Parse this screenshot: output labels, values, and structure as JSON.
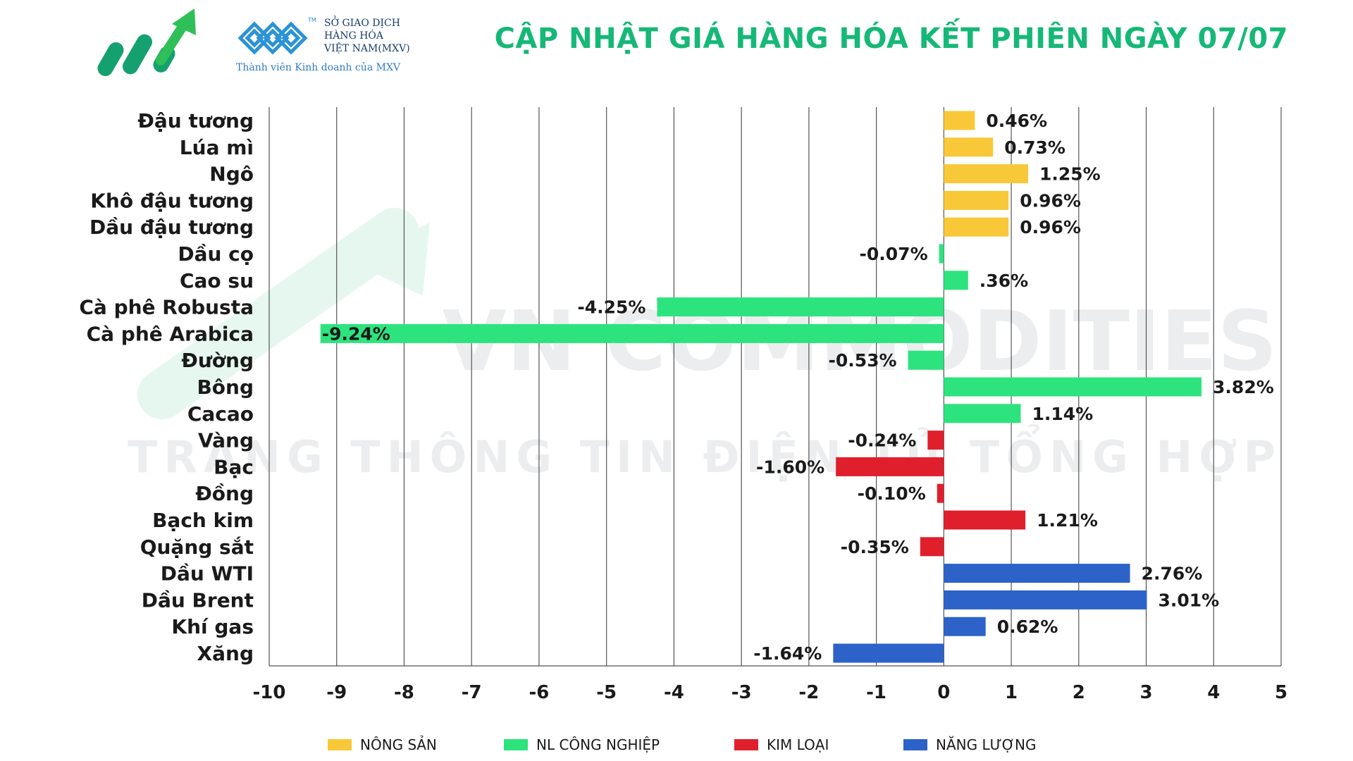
{
  "header": {
    "title": "CẬP NHẬT GIÁ HÀNG HÓA KẾT PHIÊN NGÀY 07/07",
    "exchange_name_line1": "SỞ GIAO DỊCH",
    "exchange_name_line2": "HÀNG HÓA",
    "exchange_name_line3": "VIỆT NAM(MXV)",
    "member_text": "Thành viên Kinh doanh của MXV",
    "trademark": "TM"
  },
  "watermark": {
    "line1": "VN COMMODITIES",
    "line2": "TRANG THÔNG TIN ĐIỆN TỬ TỔNG HỢP"
  },
  "colors": {
    "nong_san": "#f9c838",
    "nl_cong_nghiep": "#2de37e",
    "kim_loai": "#e01f2d",
    "nang_luong": "#2d62c9",
    "title": "#16b877"
  },
  "legend": [
    {
      "label": "NÔNG SẢN",
      "category": "nong_san"
    },
    {
      "label": "NL CÔNG NGHIỆP",
      "category": "nl_cong_nghiep"
    },
    {
      "label": "KIM LOẠI",
      "category": "kim_loai"
    },
    {
      "label": "NĂNG LƯỢNG",
      "category": "nang_luong"
    }
  ],
  "chart_data": {
    "type": "bar",
    "orientation": "horizontal",
    "xlim": [
      -10,
      5
    ],
    "xticks": [
      "-10",
      "-9",
      "-8",
      "-7",
      "-6",
      "-5",
      "-4",
      "-3",
      "-2",
      "-1",
      "0",
      "1",
      "2",
      "3",
      "4",
      "5"
    ],
    "grid": "vertical",
    "legend_position": "bottom",
    "rows": [
      {
        "name": "Đậu tương",
        "value": 0.46,
        "label": "0.46%",
        "category": "nong_san"
      },
      {
        "name": "Lúa mì",
        "value": 0.73,
        "label": "0.73%",
        "category": "nong_san"
      },
      {
        "name": "Ngô",
        "value": 1.25,
        "label": "1.25%",
        "category": "nong_san"
      },
      {
        "name": "Khô đậu tương",
        "value": 0.96,
        "label": "0.96%",
        "category": "nong_san"
      },
      {
        "name": "Dầu đậu tương",
        "value": 0.96,
        "label": "0.96%",
        "category": "nong_san"
      },
      {
        "name": "Dầu cọ",
        "value": -0.07,
        "label": "-0.07%",
        "category": "nl_cong_nghiep"
      },
      {
        "name": "Cao su",
        "value": 0.36,
        "label": ".36%",
        "category": "nl_cong_nghiep"
      },
      {
        "name": "Cà phê Robusta",
        "value": -4.25,
        "label": "-4.25%",
        "category": "nl_cong_nghiep"
      },
      {
        "name": "Cà phê Arabica",
        "value": -9.24,
        "label": "-9.24%",
        "category": "nl_cong_nghiep"
      },
      {
        "name": "Đường",
        "value": -0.53,
        "label": "-0.53%",
        "category": "nl_cong_nghiep"
      },
      {
        "name": "Bông",
        "value": 3.82,
        "label": "3.82%",
        "category": "nl_cong_nghiep"
      },
      {
        "name": "Cacao",
        "value": 1.14,
        "label": "1.14%",
        "category": "nl_cong_nghiep"
      },
      {
        "name": "Vàng",
        "value": -0.24,
        "label": "-0.24%",
        "category": "kim_loai"
      },
      {
        "name": "Bạc",
        "value": -1.6,
        "label": "-1.60%",
        "category": "kim_loai"
      },
      {
        "name": "Đồng",
        "value": -0.1,
        "label": "-0.10%",
        "category": "kim_loai"
      },
      {
        "name": "Bạch kim",
        "value": 1.21,
        "label": "1.21%",
        "category": "kim_loai"
      },
      {
        "name": "Quặng sắt",
        "value": -0.35,
        "label": "-0.35%",
        "category": "kim_loai"
      },
      {
        "name": "Dầu WTI",
        "value": 2.76,
        "label": "2.76%",
        "category": "nang_luong"
      },
      {
        "name": "Dầu Brent",
        "value": 3.01,
        "label": "3.01%",
        "category": "nang_luong"
      },
      {
        "name": "Khí gas",
        "value": 0.62,
        "label": "0.62%",
        "category": "nang_luong"
      },
      {
        "name": "Xăng",
        "value": -1.64,
        "label": "-1.64%",
        "category": "nang_luong"
      }
    ]
  }
}
